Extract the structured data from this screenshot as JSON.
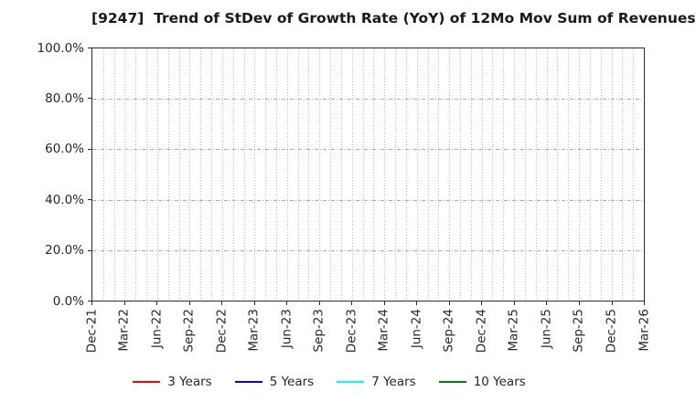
{
  "title": "[9247]  Trend of StDev of Growth Rate (YoY) of 12Mo Mov Sum of Revenues",
  "chart_data": {
    "type": "line",
    "title": "[9247]  Trend of StDev of Growth Rate (YoY) of 12Mo Mov Sum of Revenues",
    "ticker": "9247",
    "x_tick_labels": [
      "Dec-21",
      "Mar-22",
      "Jun-22",
      "Sep-22",
      "Dec-22",
      "Mar-23",
      "Jun-23",
      "Sep-23",
      "Dec-23",
      "Mar-24",
      "Jun-24",
      "Sep-24",
      "Dec-24",
      "Mar-25",
      "Jun-25",
      "Sep-25",
      "Dec-25",
      "Mar-26"
    ],
    "y_tick_labels": [
      "100.0%",
      "80.0%",
      "60.0%",
      "40.0%",
      "20.0%",
      "0.0%"
    ],
    "ylim": [
      0,
      100
    ],
    "y_unit": "%",
    "grid": true,
    "x_minor_gridlines": "monthly",
    "legend_position": "bottom",
    "series": [
      {
        "name": "3 Years",
        "color": "#ff0000",
        "values": []
      },
      {
        "name": "5 Years",
        "color": "#0000ff",
        "values": []
      },
      {
        "name": "7 Years",
        "color": "#00ffff",
        "values": []
      },
      {
        "name": "10 Years",
        "color": "#008000",
        "values": []
      }
    ],
    "note": "plot area contains gridlines only; no data lines are drawn"
  }
}
